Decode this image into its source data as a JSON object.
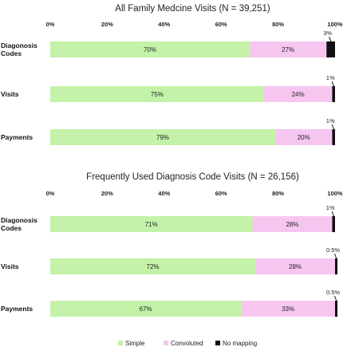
{
  "chart_data": [
    {
      "type": "bar",
      "orientation": "horizontal",
      "stacked": true,
      "title": "All Family Medcine Visits (N = 39,251)",
      "x_ticks": [
        "0%",
        "20%",
        "40%",
        "60%",
        "80%",
        "100%"
      ],
      "xlim": [
        0,
        100
      ],
      "categories": [
        "Diagonosis Codes",
        "Visits",
        "Payments"
      ],
      "series": [
        {
          "name": "Simple",
          "values": [
            70,
            75,
            79
          ],
          "labels": [
            "70%",
            "75%",
            "79%"
          ]
        },
        {
          "name": "Convoluted",
          "values": [
            27,
            24,
            20
          ],
          "labels": [
            "27%",
            "24%",
            "20%"
          ]
        },
        {
          "name": "No mapping",
          "values": [
            3,
            1,
            1
          ],
          "labels": [
            "3%",
            "1%",
            "1%"
          ]
        }
      ]
    },
    {
      "type": "bar",
      "orientation": "horizontal",
      "stacked": true,
      "title": "Frequently Used Diagnosis Code Visits (N = 26,156)",
      "x_ticks": [
        "0%",
        "20%",
        "40%",
        "60%",
        "80%",
        "100%"
      ],
      "xlim": [
        0,
        100
      ],
      "categories": [
        "Diagonosis Codes",
        "Visits",
        "Payments"
      ],
      "series": [
        {
          "name": "Simple",
          "values": [
            71,
            72,
            67
          ],
          "labels": [
            "71%",
            "72%",
            "67%"
          ]
        },
        {
          "name": "Convoluted",
          "values": [
            28,
            28,
            33
          ],
          "labels": [
            "28%",
            "28%",
            "33%"
          ]
        },
        {
          "name": "No mapping",
          "values": [
            1,
            0.5,
            0.5
          ],
          "labels": [
            "1%",
            "0.5%",
            "0.5%"
          ]
        }
      ]
    }
  ],
  "legend": {
    "placement": "bottom-center",
    "items": [
      {
        "label": "Simple",
        "color": "#c3f2a8"
      },
      {
        "label": "Convoluted",
        "color": "#f6c6f1"
      },
      {
        "label": "No mapping",
        "color": "#111111"
      }
    ]
  }
}
